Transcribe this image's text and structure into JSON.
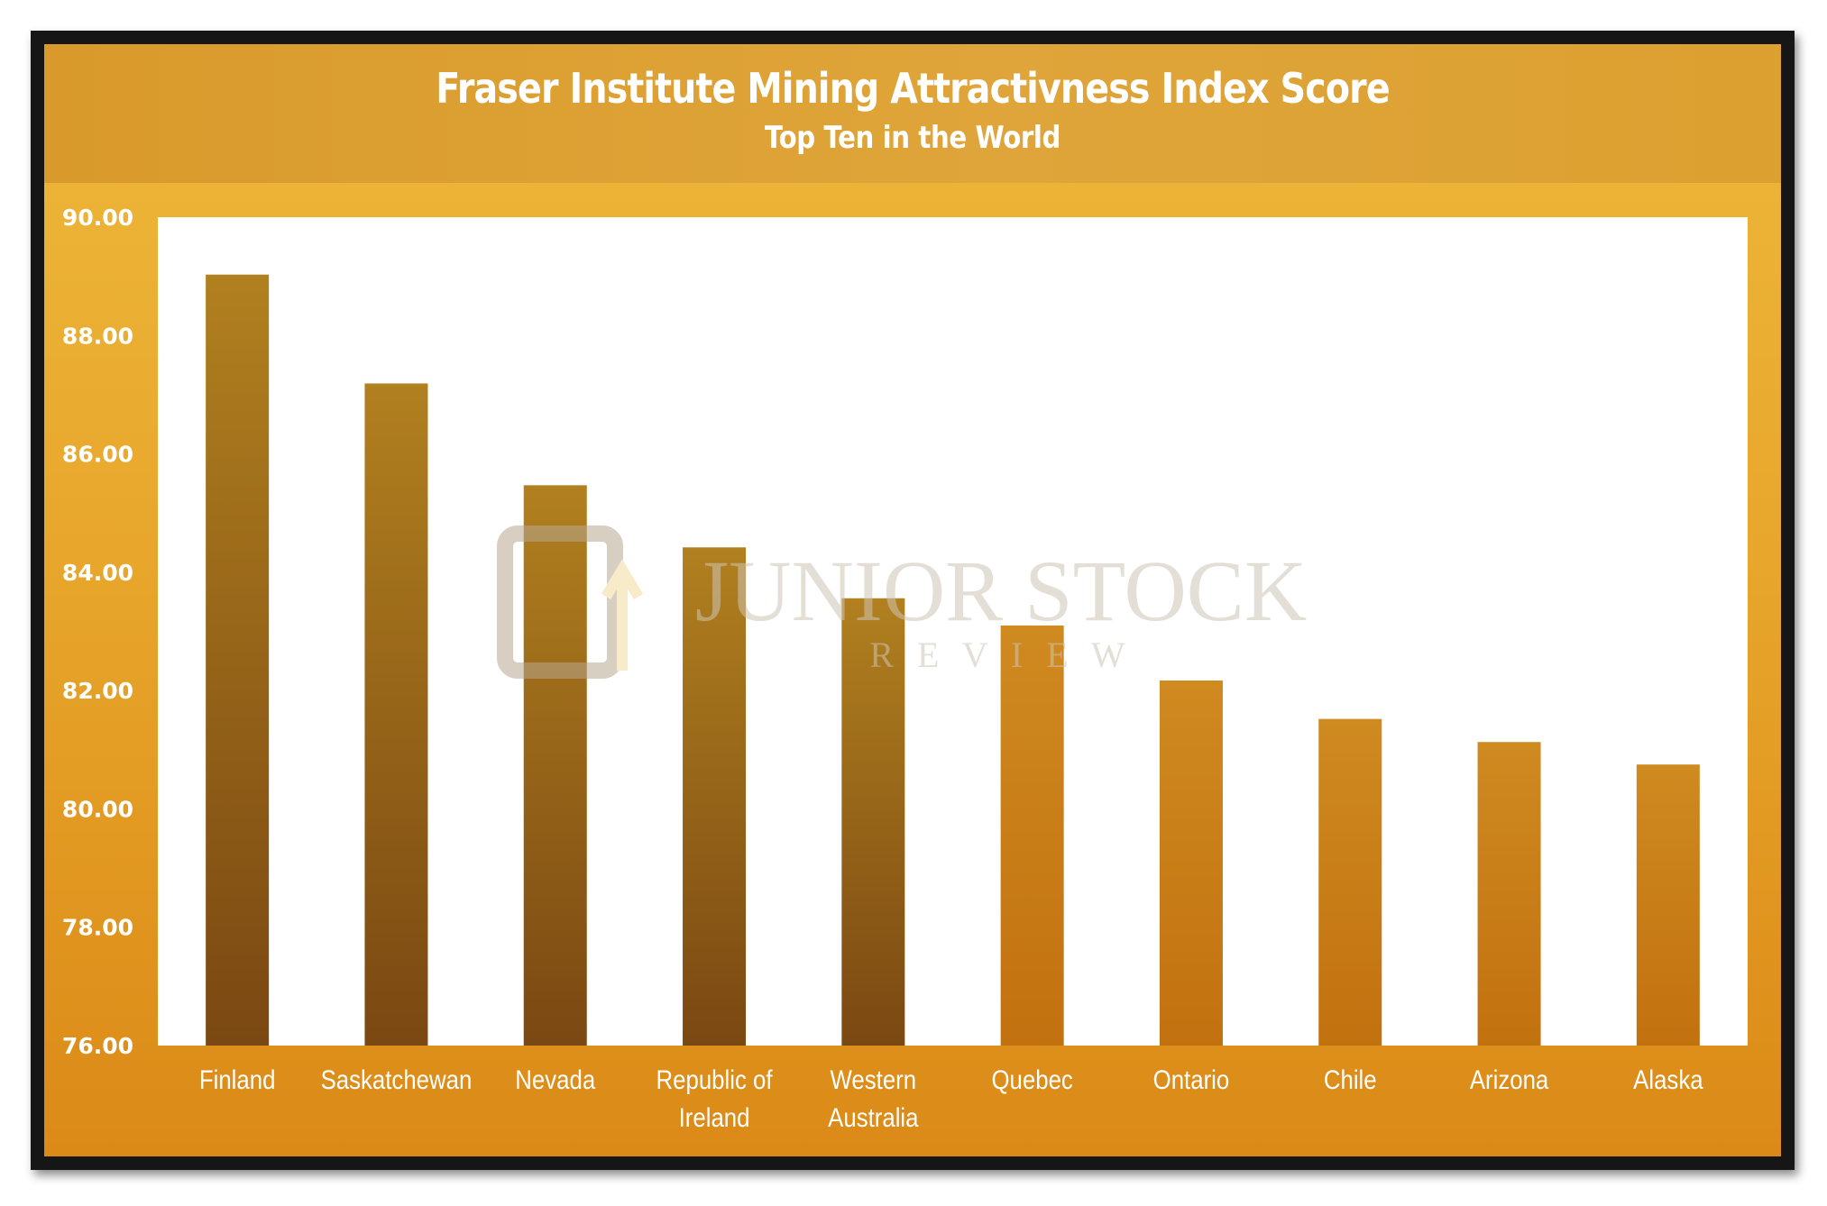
{
  "chart_data": {
    "type": "bar",
    "title": "Fraser Institute Mining Attractivness Index Score",
    "subtitle": "Top Ten in the World",
    "categories": [
      [
        "Finland"
      ],
      [
        "Saskatchewan"
      ],
      [
        "Nevada"
      ],
      [
        "Republic of",
        "Ireland"
      ],
      [
        "Western",
        "Australia"
      ],
      [
        "Quebec"
      ],
      [
        "Ontario"
      ],
      [
        "Chile"
      ],
      [
        "Arizona"
      ],
      [
        "Alaska"
      ]
    ],
    "values": [
      89.03,
      87.19,
      85.47,
      84.42,
      83.56,
      83.1,
      82.17,
      81.52,
      81.13,
      80.75
    ],
    "ylim": [
      76,
      90
    ],
    "yticks": [
      "76.00",
      "78.00",
      "80.00",
      "82.00",
      "84.00",
      "86.00",
      "88.00",
      "90.00"
    ],
    "xlabel": "",
    "ylabel": "",
    "grid": false,
    "legend": "none",
    "colors": {
      "bar_top": "#b1801f",
      "bar_bottom": "#7a4812",
      "bar_right_top": "#cf8a20",
      "bar_right_bottom": "#c2710f",
      "plot_background": "#ffffff",
      "frame": "#161616"
    },
    "watermark": {
      "line1": "JUNIOR STOCK",
      "line2": "R E V I E W"
    }
  }
}
